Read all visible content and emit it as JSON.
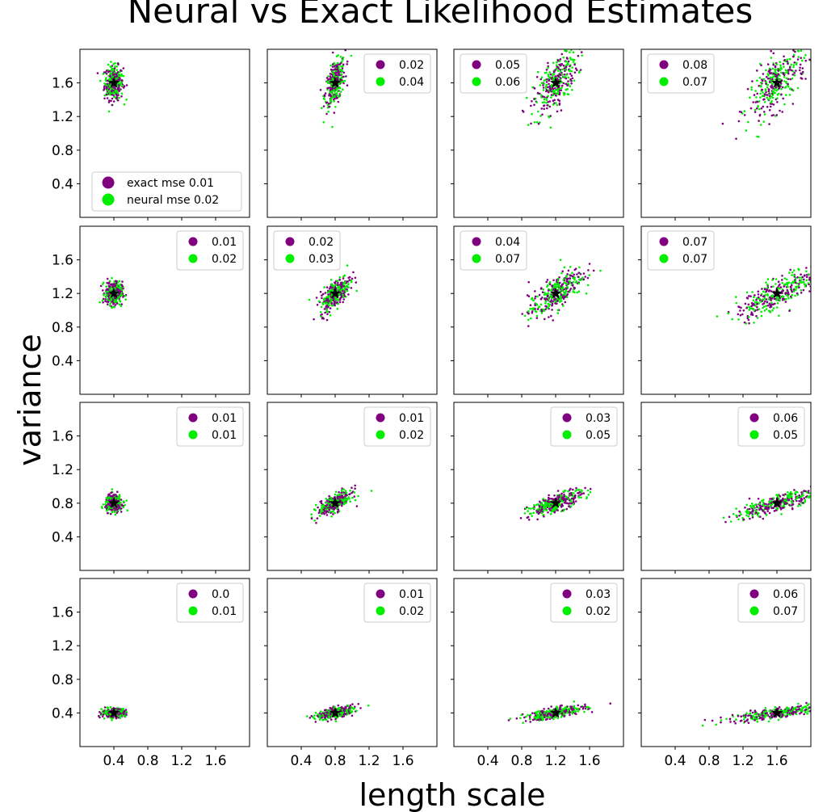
{
  "chart_data": {
    "type": "scatter",
    "title": "Neural vs Exact Likelihood Estimates",
    "xlabel": "length scale",
    "ylabel": "variance",
    "xlim": [
      0.0,
      2.0
    ],
    "ylim": [
      0.0,
      2.0
    ],
    "xticks": [
      "0.4",
      "0.8",
      "1.2",
      "1.6"
    ],
    "yticks": [
      "0.4",
      "0.8",
      "1.2",
      "1.6"
    ],
    "grid": false,
    "colors": {
      "exact": "#800080",
      "neural": "#00ee00",
      "true_value": "#000000"
    },
    "series": [
      {
        "name": "exact mse",
        "color": "#800080"
      },
      {
        "name": "neural mse",
        "color": "#00ee00"
      }
    ],
    "first_legend_labels": [
      "exact mse 0.01",
      "neural mse 0.02"
    ],
    "panels": [
      {
        "true": [
          0.4,
          1.6
        ],
        "exact_mse": "0.01",
        "neural_mse": "0.02",
        "legend": "bottom-left",
        "spread": [
          0.055,
          0.1
        ],
        "slope": 0.0
      },
      {
        "true": [
          0.8,
          1.6
        ],
        "exact_mse": "0.02",
        "neural_mse": "0.04",
        "legend": "top-right",
        "spread": [
          0.06,
          0.12
        ],
        "slope": 1.2
      },
      {
        "true": [
          1.2,
          1.6
        ],
        "exact_mse": "0.05",
        "neural_mse": "0.06",
        "legend": "top-left",
        "spread": [
          0.13,
          0.15
        ],
        "slope": 1.0
      },
      {
        "true": [
          1.6,
          1.6
        ],
        "exact_mse": "0.08",
        "neural_mse": "0.07",
        "legend": "top-left",
        "spread": [
          0.17,
          0.16
        ],
        "slope": 0.8
      },
      {
        "true": [
          0.4,
          1.2
        ],
        "exact_mse": "0.01",
        "neural_mse": "0.02",
        "legend": "top-right",
        "spread": [
          0.05,
          0.07
        ],
        "slope": 0.0
      },
      {
        "true": [
          0.8,
          1.2
        ],
        "exact_mse": "0.02",
        "neural_mse": "0.03",
        "legend": "top-left",
        "spread": [
          0.09,
          0.08
        ],
        "slope": 0.8
      },
      {
        "true": [
          1.2,
          1.2
        ],
        "exact_mse": "0.04",
        "neural_mse": "0.07",
        "legend": "top-left",
        "spread": [
          0.16,
          0.1
        ],
        "slope": 0.7
      },
      {
        "true": [
          1.6,
          1.2
        ],
        "exact_mse": "0.07",
        "neural_mse": "0.07",
        "legend": "top-left",
        "spread": [
          0.24,
          0.09
        ],
        "slope": 0.5
      },
      {
        "true": [
          0.4,
          0.8
        ],
        "exact_mse": "0.01",
        "neural_mse": "0.01",
        "legend": "top-right",
        "spread": [
          0.05,
          0.05
        ],
        "slope": 0.0
      },
      {
        "true": [
          0.8,
          0.8
        ],
        "exact_mse": "0.01",
        "neural_mse": "0.02",
        "legend": "top-right",
        "spread": [
          0.1,
          0.05
        ],
        "slope": 0.45
      },
      {
        "true": [
          1.2,
          0.8
        ],
        "exact_mse": "0.03",
        "neural_mse": "0.05",
        "legend": "top-right",
        "spread": [
          0.16,
          0.05
        ],
        "slope": 0.35
      },
      {
        "true": [
          1.6,
          0.8
        ],
        "exact_mse": "0.06",
        "neural_mse": "0.05",
        "legend": "top-right",
        "spread": [
          0.26,
          0.05
        ],
        "slope": 0.3
      },
      {
        "true": [
          0.4,
          0.4
        ],
        "exact_mse": "0.0",
        "neural_mse": "0.01",
        "legend": "top-right",
        "spread": [
          0.07,
          0.025
        ],
        "slope": 0.05
      },
      {
        "true": [
          0.8,
          0.4
        ],
        "exact_mse": "0.01",
        "neural_mse": "0.02",
        "legend": "top-right",
        "spread": [
          0.11,
          0.03
        ],
        "slope": 0.2
      },
      {
        "true": [
          1.2,
          0.4
        ],
        "exact_mse": "0.03",
        "neural_mse": "0.02",
        "legend": "top-right",
        "spread": [
          0.18,
          0.03
        ],
        "slope": 0.17
      },
      {
        "true": [
          1.6,
          0.4
        ],
        "exact_mse": "0.06",
        "neural_mse": "0.07",
        "legend": "top-right",
        "spread": [
          0.28,
          0.03
        ],
        "slope": 0.14
      }
    ]
  }
}
